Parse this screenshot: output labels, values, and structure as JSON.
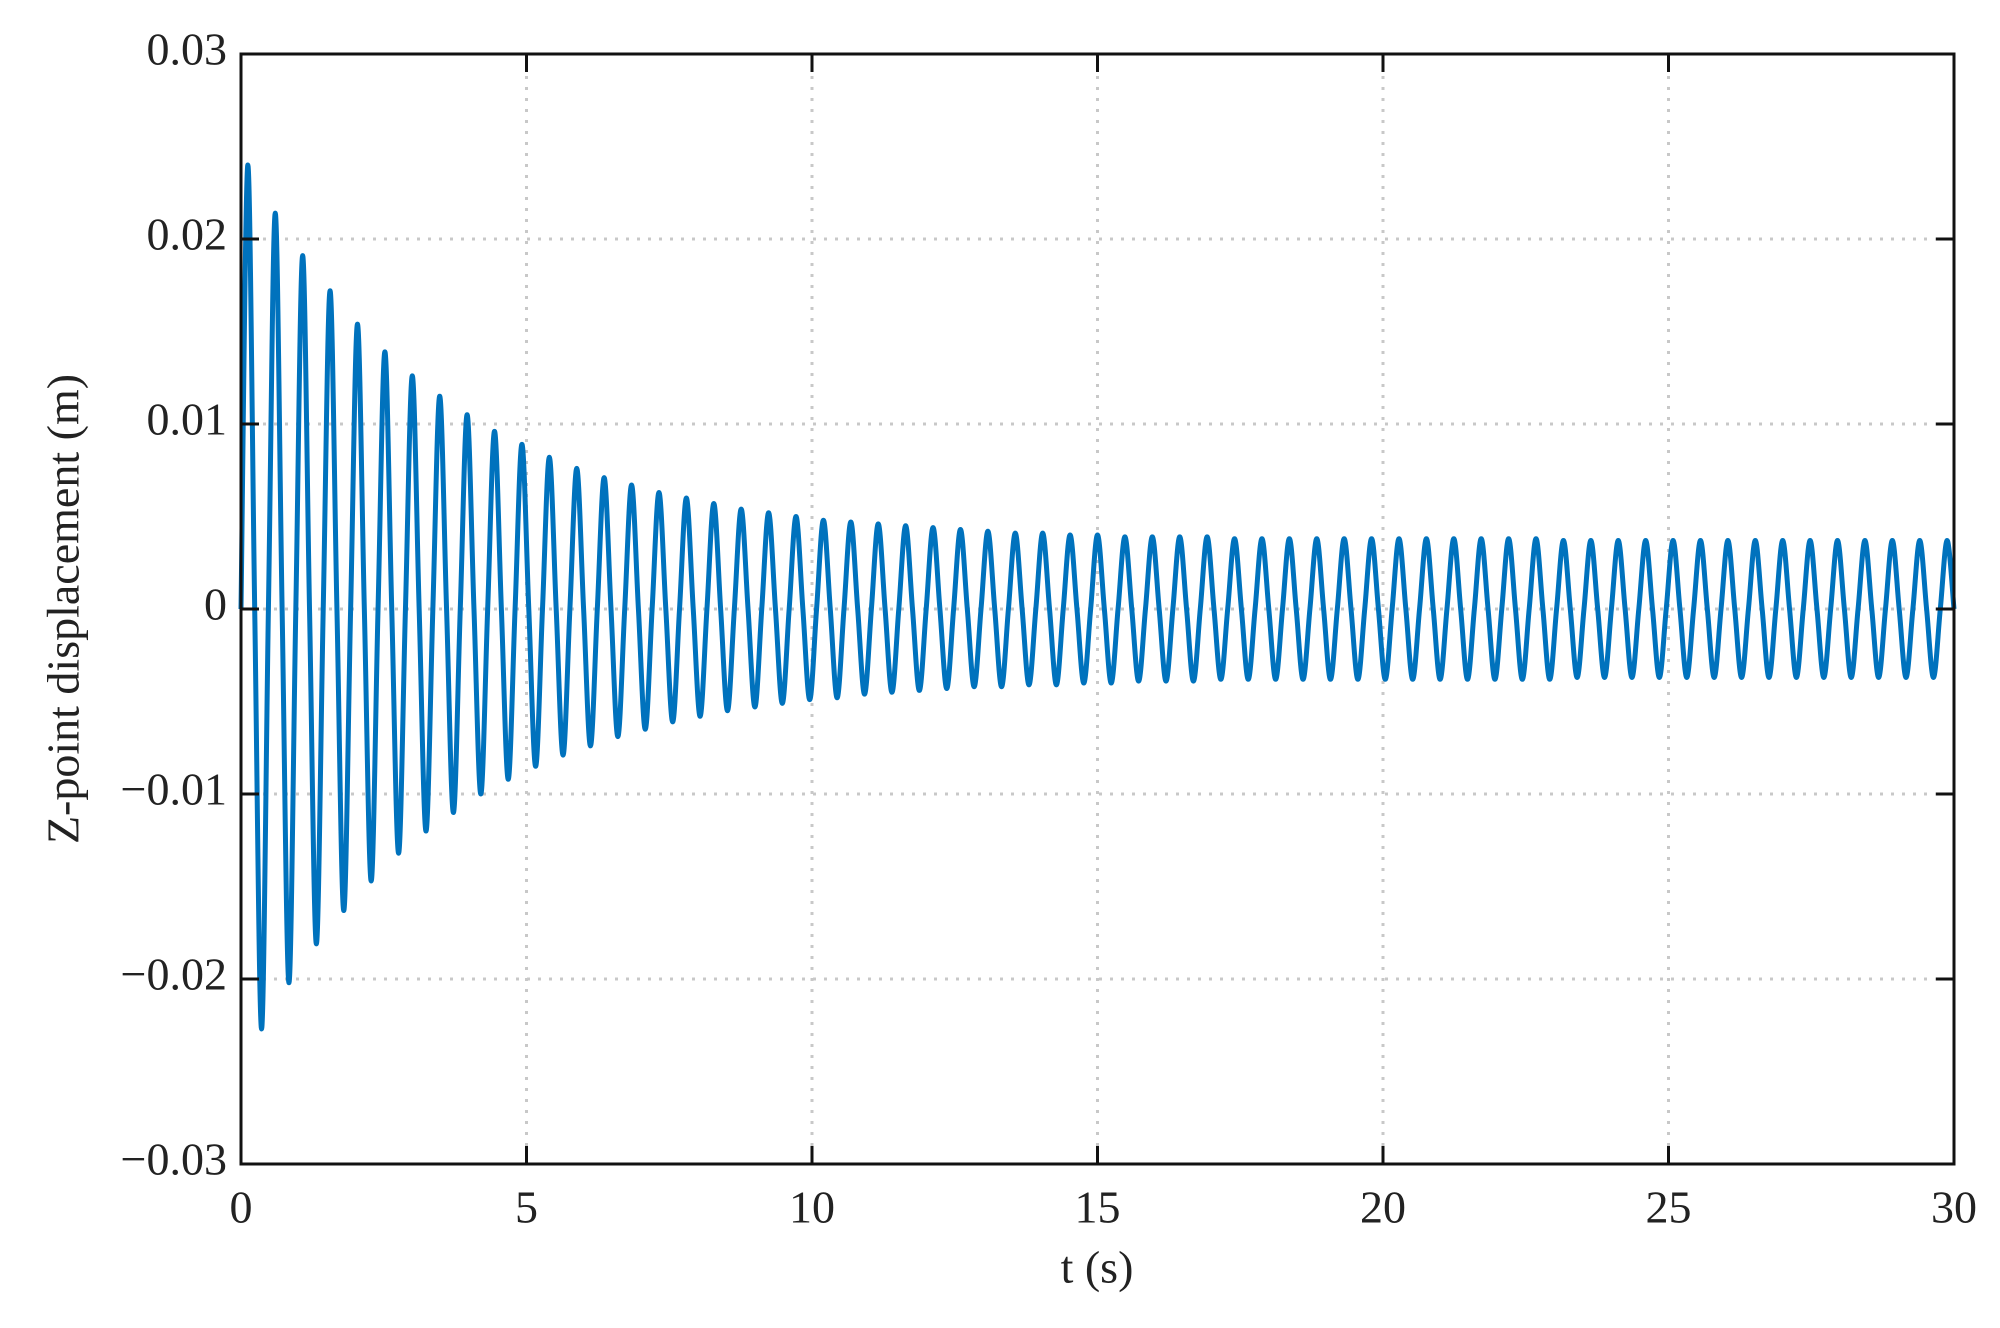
{
  "chart_data": {
    "type": "line",
    "x_label": "t (s)",
    "y_label": "Z-point displacement (m)",
    "xlim": [
      0,
      30
    ],
    "xticks": [
      0,
      5,
      10,
      15,
      20,
      25,
      30
    ],
    "ylim": [
      -0.03,
      0.03
    ],
    "yticks": [
      {
        "value": -0.03,
        "label": "−0.03"
      },
      {
        "value": -0.02,
        "label": "−0.02"
      },
      {
        "value": -0.01,
        "label": "−0.01"
      },
      0,
      0.01,
      0.02,
      0.03
    ],
    "grid": true,
    "series": [
      {
        "color": "#0072bd",
        "x": [
          0,
          0.12,
          0.24,
          0.36,
          0.48,
          0.6,
          0.72,
          0.84,
          0.96,
          1.08,
          1.2,
          1.32,
          1.44,
          1.56,
          1.68,
          1.8,
          1.92,
          2.04,
          2.16,
          2.28,
          2.4,
          2.52,
          2.64,
          2.76,
          2.88,
          3,
          3.12,
          3.24,
          3.36,
          3.48,
          3.6,
          3.72,
          3.84,
          3.96,
          4.08,
          4.2,
          4.32,
          4.44,
          4.56,
          4.68,
          4.8,
          4.92,
          5.04,
          5.16,
          5.28,
          5.4,
          5.52,
          5.64,
          5.76,
          5.88,
          6,
          6.12,
          6.24,
          6.36,
          6.48,
          6.6,
          6.72,
          6.84,
          6.96,
          7.08,
          7.2,
          7.32,
          7.44,
          7.56,
          7.68,
          7.8,
          7.92,
          8.04,
          8.16,
          8.28,
          8.4,
          8.52,
          8.64,
          8.76,
          8.88,
          9,
          9.12,
          9.24,
          9.36,
          9.48,
          9.6,
          9.72,
          9.84,
          9.96,
          10.08,
          10.2,
          10.32,
          10.44,
          10.56,
          10.68,
          10.8,
          10.92,
          11.04,
          11.16,
          11.28,
          11.4,
          11.52,
          11.64,
          11.76,
          11.88,
          12,
          12.12,
          12.24,
          12.36,
          12.48,
          12.6,
          12.72,
          12.84,
          12.96,
          13.08,
          13.2,
          13.32,
          13.44,
          13.56,
          13.68,
          13.8,
          13.92,
          14.04,
          14.16,
          14.28,
          14.4,
          14.52,
          14.64,
          14.76,
          14.88,
          15,
          15.12,
          15.24,
          15.36,
          15.48,
          15.6,
          15.72,
          15.84,
          15.96,
          16.08,
          16.2,
          16.32,
          16.44,
          16.56,
          16.68,
          16.8,
          16.92,
          17.04,
          17.16,
          17.28,
          17.4,
          17.52,
          17.64,
          17.76,
          17.88,
          18,
          18.12,
          18.24,
          18.36,
          18.48,
          18.6,
          18.72,
          18.84,
          18.96,
          19.08,
          19.2,
          19.32,
          19.44,
          19.56,
          19.68,
          19.8,
          19.92,
          20.04,
          20.16,
          20.28,
          20.4,
          20.52,
          20.64,
          20.76,
          20.88,
          21,
          21.12,
          21.24,
          21.36,
          21.48,
          21.6,
          21.72,
          21.84,
          21.96,
          22.08,
          22.2,
          22.32,
          22.44,
          22.56,
          22.68,
          22.8,
          22.92,
          23.04,
          23.16,
          23.28,
          23.4,
          23.52,
          23.64,
          23.76,
          23.88,
          24,
          24.12,
          24.24,
          24.36,
          24.48,
          24.6,
          24.72,
          24.84,
          24.96,
          25.08,
          25.2,
          25.32,
          25.44,
          25.56,
          25.68,
          25.8,
          25.92,
          26.04,
          26.16,
          26.28,
          26.4,
          26.52,
          26.64,
          26.76,
          26.88,
          27,
          27.12,
          27.24,
          27.36,
          27.48,
          27.6,
          27.72,
          27.84,
          27.96,
          28.08,
          28.2,
          28.32,
          28.44,
          28.56,
          28.68,
          28.8,
          28.92,
          29.04,
          29.16,
          29.28,
          29.4,
          29.52,
          29.64,
          29.76,
          29.88,
          30
        ],
        "values": [
          0,
          0.024,
          0,
          -0.0227,
          0,
          0.0214,
          0,
          -0.0202,
          0,
          0.0191,
          0,
          -0.0181,
          0,
          0.0172,
          0,
          -0.0163,
          0,
          0.0154,
          0,
          -0.0147,
          0,
          0.0139,
          0,
          -0.0132,
          0,
          0.0126,
          0,
          -0.012,
          0,
          0.0115,
          0,
          -0.011,
          0,
          0.0105,
          0,
          -0.01,
          0,
          0.0096,
          0,
          -0.0092,
          0,
          0.0089,
          0,
          -0.0085,
          0,
          0.0082,
          0,
          -0.0079,
          0,
          0.0076,
          0,
          -0.0074,
          0,
          0.0071,
          0,
          -0.0069,
          0,
          0.0067,
          0,
          -0.0065,
          0,
          0.0063,
          0,
          -0.0061,
          0,
          0.006,
          0,
          -0.0058,
          0,
          0.0057,
          0,
          -0.0055,
          0,
          0.0054,
          0,
          -0.0053,
          0,
          0.0052,
          0,
          -0.0051,
          0,
          0.005,
          0,
          -0.0049,
          0,
          0.0048,
          0,
          -0.0048,
          0,
          0.0047,
          0,
          -0.0046,
          0,
          0.0046,
          0,
          -0.0045,
          0,
          0.0045,
          0,
          -0.0044,
          0,
          0.0044,
          0,
          -0.0043,
          0,
          0.0043,
          0,
          -0.0042,
          0,
          0.0042,
          0,
          -0.0042,
          0,
          0.0041,
          0,
          -0.0041,
          0,
          0.0041,
          0,
          -0.0041,
          0,
          0.004,
          0,
          -0.004,
          0,
          0.004,
          0,
          -0.004,
          0,
          0.0039,
          0,
          -0.0039,
          0,
          0.0039,
          0,
          -0.0039,
          0,
          0.0039,
          0,
          -0.0039,
          0,
          0.0039,
          0,
          -0.0038,
          0,
          0.0038,
          0,
          -0.0038,
          0,
          0.0038,
          0,
          -0.0038,
          0,
          0.0038,
          0,
          -0.0038,
          0,
          0.0038,
          0,
          -0.0038,
          0,
          0.0038,
          0,
          -0.0038,
          0,
          0.0038,
          0,
          -0.0038,
          0,
          0.0038,
          0,
          -0.0038,
          0,
          0.0038,
          0,
          -0.0038,
          0,
          0.0038,
          0,
          -0.0038,
          0,
          0.0038,
          0,
          -0.0038,
          0,
          0.0038,
          0,
          -0.0038,
          0,
          0.0038,
          0,
          -0.0038,
          0,
          0.0037,
          0,
          -0.0037,
          0,
          0.0037,
          0,
          -0.0037,
          0,
          0.0037,
          0,
          -0.0037,
          0,
          0.0037,
          0,
          -0.0037,
          0,
          0.0037,
          0,
          -0.0037,
          0,
          0.0037,
          0,
          -0.0037,
          0,
          0.0037,
          0,
          -0.0037,
          0,
          0.0037,
          0,
          -0.0037,
          0,
          0.0037,
          0,
          -0.0037,
          0,
          0.0037,
          0,
          -0.0037,
          0,
          0.0037,
          0,
          -0.0037,
          0,
          0.0037,
          0,
          -0.0037,
          0,
          0.0037,
          0,
          -0.0037,
          0,
          0.0037,
          0,
          -0.0037,
          0,
          0.0037,
          0
        ]
      }
    ]
  }
}
